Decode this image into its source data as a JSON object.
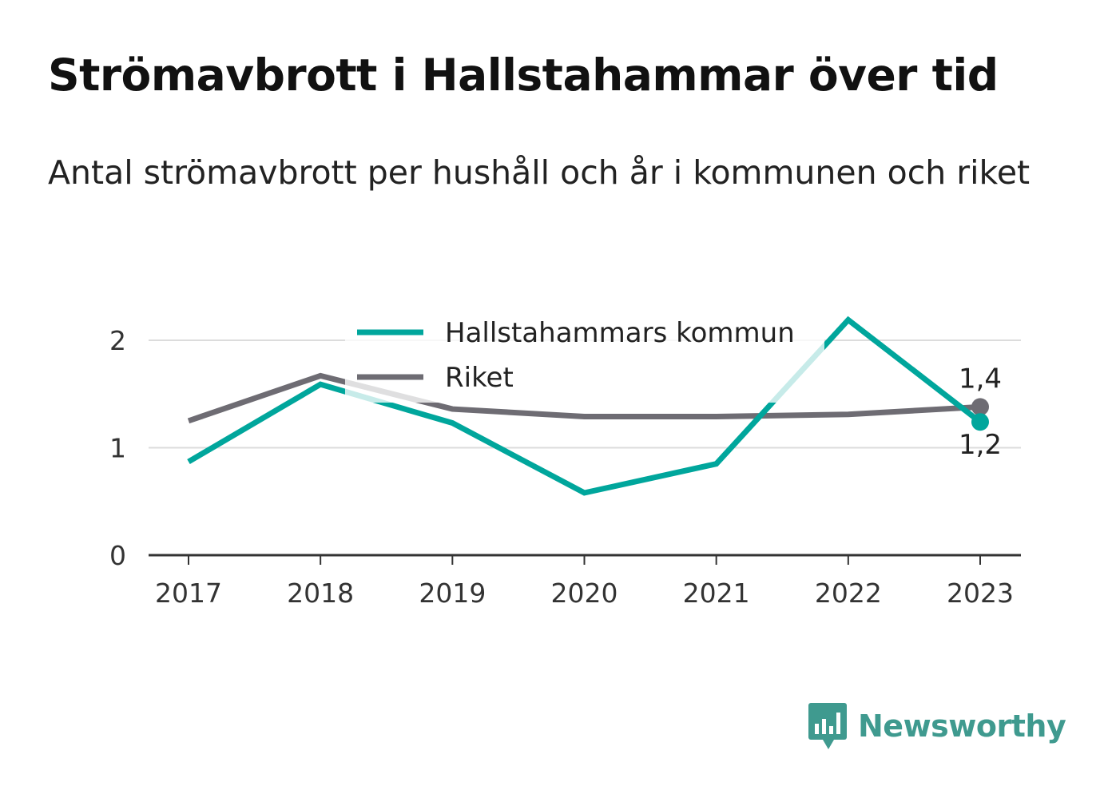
{
  "title": "Strömavbrott i Hallstahammar över tid",
  "subtitle": "Antal strömavbrott per hushåll och år i kommunen och riket",
  "brand": {
    "name": "Newsworthy",
    "icon": "newsworthy-logo-icon",
    "color": "#3f9a8f"
  },
  "chart_data": {
    "type": "line",
    "x": [
      "2017",
      "2018",
      "2019",
      "2020",
      "2021",
      "2022",
      "2023"
    ],
    "ylim": [
      0,
      2.25
    ],
    "yticks": [
      0,
      1,
      2
    ],
    "grid": true,
    "legend_position": "top-center",
    "series": [
      {
        "name": "Hallstahammars kommun",
        "color": "#00a69c",
        "values": [
          0.87,
          1.59,
          1.23,
          0.58,
          0.85,
          2.19,
          1.24
        ],
        "end_label": "1,2"
      },
      {
        "name": "Riket",
        "color": "#6e6c73",
        "values": [
          1.25,
          1.67,
          1.36,
          1.29,
          1.29,
          1.31,
          1.38
        ],
        "end_label": "1,4"
      }
    ]
  }
}
